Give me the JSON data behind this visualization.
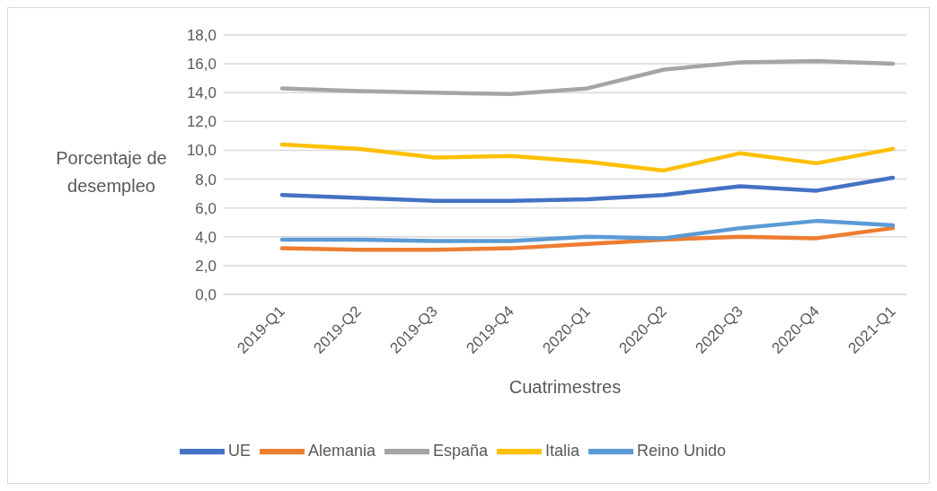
{
  "chart_data": {
    "type": "line",
    "xlabel": "Cuatrimestres",
    "ylabel": "Porcentaje de desempleo",
    "categories": [
      "2019-Q1",
      "2019-Q2",
      "2019-Q3",
      "2019-Q4",
      "2020-Q1",
      "2020-Q2",
      "2020-Q3",
      "2020-Q4",
      "2021-Q1"
    ],
    "series": [
      {
        "name": "UE",
        "color": "#4472c4",
        "values": [
          6.9,
          6.7,
          6.5,
          6.5,
          6.6,
          6.9,
          7.5,
          7.2,
          8.1
        ]
      },
      {
        "name": "Alemania",
        "color": "#ed7d31",
        "values": [
          3.2,
          3.1,
          3.1,
          3.2,
          3.5,
          3.8,
          4.0,
          3.9,
          4.6
        ]
      },
      {
        "name": "España",
        "color": "#a5a5a5",
        "values": [
          14.3,
          14.1,
          14.0,
          13.9,
          14.3,
          15.6,
          16.1,
          16.2,
          16.0
        ]
      },
      {
        "name": "Italia",
        "color": "#ffc000",
        "values": [
          10.4,
          10.1,
          9.5,
          9.6,
          9.2,
          8.6,
          9.8,
          9.1,
          10.1
        ]
      },
      {
        "name": "Reino Unido",
        "color": "#5b9bd5",
        "values": [
          3.8,
          3.8,
          3.7,
          3.7,
          4.0,
          3.9,
          4.6,
          5.1,
          4.8
        ]
      }
    ],
    "ylim": [
      0,
      18
    ],
    "yticks": [
      {
        "value": 0,
        "label": "0,0"
      },
      {
        "value": 2,
        "label": "2,0"
      },
      {
        "value": 4,
        "label": "4,0"
      },
      {
        "value": 6,
        "label": "6,0"
      },
      {
        "value": 8,
        "label": "8,0"
      },
      {
        "value": 10,
        "label": "10,0"
      },
      {
        "value": 12,
        "label": "12,0"
      },
      {
        "value": 14,
        "label": "14,0"
      },
      {
        "value": 16,
        "label": "16,0"
      },
      {
        "value": 18,
        "label": "18,0"
      }
    ],
    "grid": "y",
    "legend": "bottom",
    "marker": "none",
    "line_style": "solid"
  }
}
